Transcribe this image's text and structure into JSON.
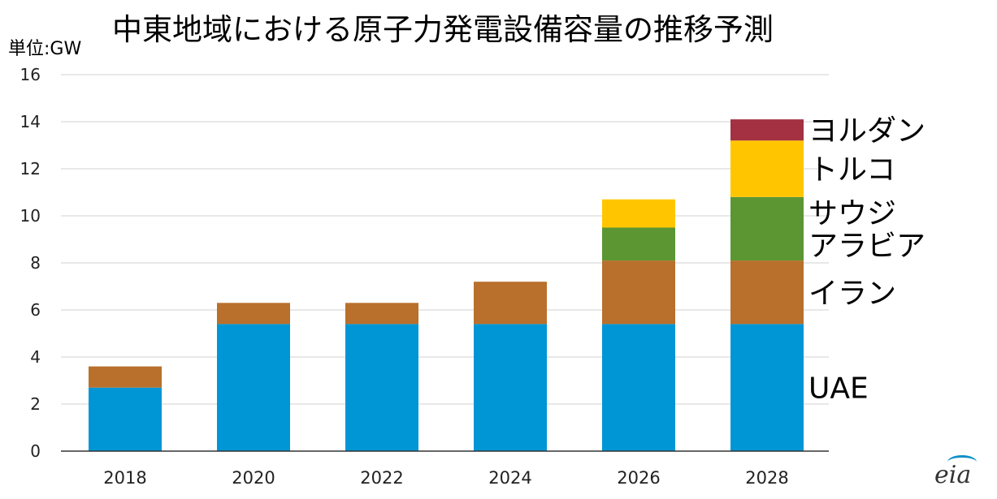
{
  "title": "中東地域における原子力発電設備容量の推移予測",
  "unit_label": "単位:GW",
  "logo_text": "eia",
  "chart_data": {
    "type": "bar",
    "stacked": true,
    "categories": [
      "2018",
      "2020",
      "2022",
      "2024",
      "2026",
      "2028"
    ],
    "ylim": [
      0,
      16
    ],
    "yticks": [
      0,
      2,
      4,
      6,
      8,
      10,
      12,
      14,
      16
    ],
    "grid": true,
    "legend_placement": "right",
    "series": [
      {
        "name": "UAE",
        "color": "#0096d6",
        "values": [
          2.7,
          5.4,
          5.4,
          5.4,
          5.4,
          5.4
        ]
      },
      {
        "name": "イラン",
        "color": "#b8702c",
        "values": [
          0.9,
          0.9,
          0.9,
          1.8,
          2.7,
          2.7
        ]
      },
      {
        "name": "サウジアラビア",
        "color": "#5c9632",
        "values": [
          0,
          0,
          0,
          0,
          1.4,
          2.7
        ]
      },
      {
        "name": "トルコ",
        "color": "#ffc600",
        "values": [
          0,
          0,
          0,
          0,
          1.2,
          2.4
        ]
      },
      {
        "name": "ヨルダン",
        "color": "#a33142",
        "values": [
          0,
          0,
          0,
          0,
          0,
          0.9
        ]
      }
    ],
    "legend_lines": [
      [
        "UAE"
      ],
      [
        "イラン"
      ],
      [
        "サウジ",
        "アラビア"
      ],
      [
        "トルコ"
      ],
      [
        "ヨルダン"
      ]
    ]
  }
}
